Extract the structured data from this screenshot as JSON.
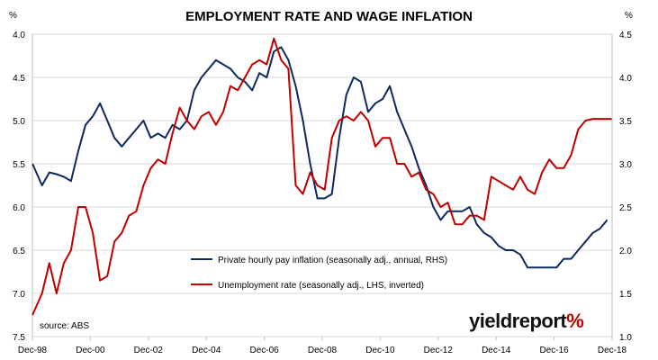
{
  "chart_data": {
    "type": "line",
    "title": "EMPLOYMENT RATE AND WAGE INFLATION",
    "left_axis_unit": "%",
    "right_axis_unit": "%",
    "left_axis": {
      "min": 4.0,
      "max": 7.5,
      "inverted": true,
      "ticks": [
        "4.0",
        "4.5",
        "5.0",
        "5.5",
        "6.0",
        "6.5",
        "7.0",
        "7.5"
      ]
    },
    "right_axis": {
      "min": 1.0,
      "max": 4.5,
      "ticks": [
        "1.0",
        "1.5",
        "2.0",
        "2.5",
        "3.0",
        "3.5",
        "4.0",
        "4.5"
      ]
    },
    "x_axis": {
      "start_year": 1998.917,
      "end_year": 2018.917,
      "tick_labels": [
        "Dec-98",
        "Dec-00",
        "Dec-02",
        "Dec-04",
        "Dec-06",
        "Dec-08",
        "Dec-10",
        "Dec-12",
        "Dec-14",
        "Dec-16",
        "Dec-18"
      ]
    },
    "grid": "horizontal",
    "legend_position": "bottom-center",
    "series": [
      {
        "name": "Private hourly pay inflation (seasonally adj., annual, RHS)",
        "axis": "right",
        "color": "#0d2a5e",
        "x": [
          1998.92,
          1999.25,
          1999.5,
          1999.75,
          2000.0,
          2000.25,
          2000.5,
          2000.75,
          2001.0,
          2001.25,
          2001.5,
          2001.75,
          2002.0,
          2002.25,
          2002.5,
          2002.75,
          2003.0,
          2003.25,
          2003.5,
          2003.75,
          2004.0,
          2004.25,
          2004.5,
          2004.75,
          2005.0,
          2005.25,
          2005.5,
          2005.75,
          2006.0,
          2006.25,
          2006.5,
          2006.75,
          2007.0,
          2007.25,
          2007.5,
          2007.75,
          2008.0,
          2008.25,
          2008.5,
          2008.75,
          2009.0,
          2009.25,
          2009.5,
          2009.75,
          2010.0,
          2010.25,
          2010.5,
          2010.75,
          2011.0,
          2011.25,
          2011.5,
          2011.75,
          2012.0,
          2012.25,
          2012.5,
          2012.75,
          2013.0,
          2013.25,
          2013.5,
          2013.75,
          2014.0,
          2014.25,
          2014.5,
          2014.75,
          2015.0,
          2015.25,
          2015.5,
          2015.75,
          2016.0,
          2016.25,
          2016.5,
          2016.75,
          2017.0,
          2017.25,
          2017.5,
          2017.75,
          2018.0,
          2018.25,
          2018.5,
          2018.75
        ],
        "y": [
          3.0,
          2.75,
          2.9,
          2.88,
          2.85,
          2.8,
          3.15,
          3.45,
          3.55,
          3.7,
          3.5,
          3.3,
          3.2,
          3.3,
          3.4,
          3.5,
          3.3,
          3.35,
          3.3,
          3.45,
          3.4,
          3.5,
          3.85,
          4.0,
          4.1,
          4.2,
          4.15,
          4.1,
          4.0,
          3.95,
          3.85,
          4.05,
          4.0,
          4.3,
          4.35,
          4.2,
          3.9,
          3.5,
          3.0,
          2.6,
          2.6,
          2.65,
          3.3,
          3.8,
          4.0,
          3.95,
          3.6,
          3.7,
          3.75,
          3.9,
          3.6,
          3.4,
          3.2,
          2.95,
          2.75,
          2.5,
          2.35,
          2.45,
          2.45,
          2.45,
          2.5,
          2.3,
          2.2,
          2.15,
          2.05,
          2.0,
          2.0,
          1.95,
          1.8,
          1.8,
          1.8,
          1.8,
          1.8,
          1.9,
          1.9,
          2.0,
          2.1,
          2.2,
          2.25,
          2.35
        ]
      },
      {
        "name": "Unemployment rate (seasonally adj., LHS, inverted)",
        "axis": "left",
        "color": "#c00000",
        "x": [
          1998.92,
          1999.25,
          1999.5,
          1999.75,
          2000.0,
          2000.25,
          2000.5,
          2000.75,
          2001.0,
          2001.25,
          2001.5,
          2001.75,
          2002.0,
          2002.25,
          2002.5,
          2002.75,
          2003.0,
          2003.25,
          2003.5,
          2003.75,
          2004.0,
          2004.25,
          2004.5,
          2004.75,
          2005.0,
          2005.25,
          2005.5,
          2005.75,
          2006.0,
          2006.25,
          2006.5,
          2006.75,
          2007.0,
          2007.25,
          2007.5,
          2007.75,
          2008.0,
          2008.25,
          2008.5,
          2008.75,
          2009.0,
          2009.25,
          2009.5,
          2009.75,
          2010.0,
          2010.25,
          2010.5,
          2010.75,
          2011.0,
          2011.25,
          2011.5,
          2011.75,
          2012.0,
          2012.25,
          2012.5,
          2012.75,
          2013.0,
          2013.25,
          2013.5,
          2013.75,
          2014.0,
          2014.25,
          2014.5,
          2014.75,
          2015.0,
          2015.25,
          2015.5,
          2015.75,
          2016.0,
          2016.25,
          2016.5,
          2016.75,
          2017.0,
          2017.25,
          2017.5,
          2017.75,
          2018.0,
          2018.25,
          2018.5,
          2018.75,
          2018.9
        ],
        "y": [
          7.25,
          7.0,
          6.65,
          7.0,
          6.65,
          6.5,
          6.0,
          6.0,
          6.3,
          6.85,
          6.8,
          6.4,
          6.3,
          6.1,
          6.05,
          5.75,
          5.55,
          5.45,
          5.5,
          5.15,
          4.85,
          5.0,
          5.1,
          4.95,
          4.9,
          5.05,
          4.9,
          4.6,
          4.65,
          4.5,
          4.35,
          4.3,
          4.35,
          4.05,
          4.3,
          4.4,
          5.75,
          5.85,
          5.6,
          5.75,
          5.8,
          5.2,
          5.0,
          4.95,
          5.0,
          4.9,
          5.0,
          5.3,
          5.2,
          5.2,
          5.5,
          5.5,
          5.65,
          5.6,
          5.8,
          5.85,
          6.0,
          5.95,
          6.2,
          6.2,
          6.1,
          6.1,
          6.15,
          5.65,
          5.7,
          5.75,
          5.8,
          5.65,
          5.8,
          5.85,
          5.6,
          5.45,
          5.55,
          5.55,
          5.4,
          5.1,
          5.0,
          4.98,
          4.98,
          4.98,
          4.98
        ]
      }
    ]
  },
  "source": "source: ABS",
  "brand": {
    "yield": "yield",
    "report": "report",
    "pct": "%"
  }
}
